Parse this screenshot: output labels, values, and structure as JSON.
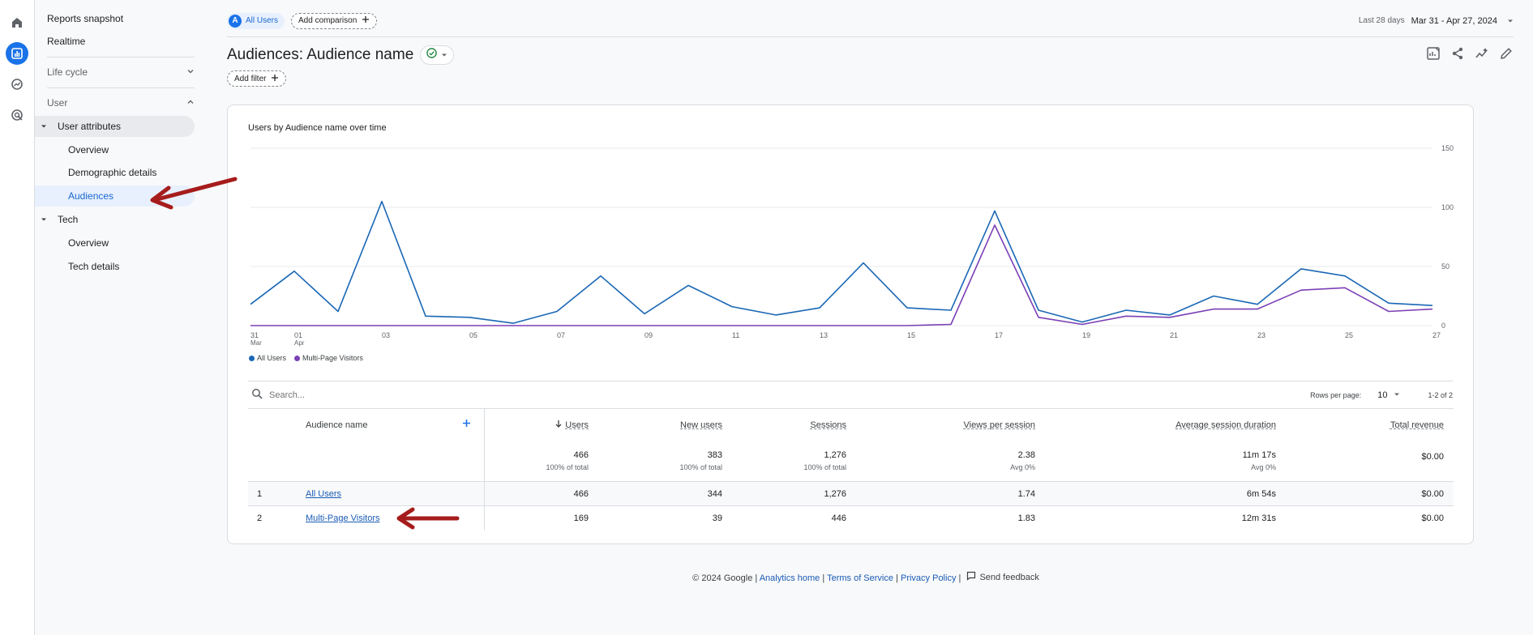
{
  "colors": {
    "accent": "#1a73e8",
    "series_all": "#1a67b5",
    "series_multi": "#7b3fb5",
    "arrow": "#a61c1c"
  },
  "rail": {
    "icons": [
      "home-icon",
      "reports-icon",
      "explore-icon",
      "advertising-icon"
    ]
  },
  "nav": {
    "reports_snapshot": "Reports snapshot",
    "realtime": "Realtime",
    "life_cycle": "Life cycle",
    "user": "User",
    "user_attributes": "User attributes",
    "overview": "Overview",
    "demographic_details": "Demographic details",
    "audiences": "Audiences",
    "tech": "Tech",
    "tech_overview": "Overview",
    "tech_details": "Tech details"
  },
  "topbar": {
    "segment_badge": "A",
    "segment_label": "All Users",
    "add_comparison": "Add comparison",
    "date_prefix": "Last 28 days",
    "date_range": "Mar 31 - Apr 27, 2024"
  },
  "page": {
    "title": "Audiences: Audience name",
    "add_filter": "Add filter"
  },
  "chart": {
    "title": "Users by Audience name over time",
    "y_ticks": [
      "150",
      "100",
      "50",
      "0"
    ],
    "x_ticks": [
      {
        "label": "31",
        "sub": "Mar"
      },
      {
        "label": "01",
        "sub": "Apr"
      },
      {
        "label": "03",
        "sub": ""
      },
      {
        "label": "05",
        "sub": ""
      },
      {
        "label": "07",
        "sub": ""
      },
      {
        "label": "09",
        "sub": ""
      },
      {
        "label": "11",
        "sub": ""
      },
      {
        "label": "13",
        "sub": ""
      },
      {
        "label": "15",
        "sub": ""
      },
      {
        "label": "17",
        "sub": ""
      },
      {
        "label": "19",
        "sub": ""
      },
      {
        "label": "21",
        "sub": ""
      },
      {
        "label": "23",
        "sub": ""
      },
      {
        "label": "25",
        "sub": ""
      },
      {
        "label": "27",
        "sub": ""
      }
    ],
    "legend": [
      "All Users",
      "Multi-Page Visitors"
    ]
  },
  "chart_data": {
    "type": "line",
    "x": [
      "Mar 31",
      "Apr 01",
      "Apr 02",
      "Apr 03",
      "Apr 04",
      "Apr 05",
      "Apr 06",
      "Apr 07",
      "Apr 08",
      "Apr 09",
      "Apr 10",
      "Apr 11",
      "Apr 12",
      "Apr 13",
      "Apr 14",
      "Apr 15",
      "Apr 16",
      "Apr 17",
      "Apr 18",
      "Apr 19",
      "Apr 20",
      "Apr 21",
      "Apr 22",
      "Apr 23",
      "Apr 24",
      "Apr 25",
      "Apr 26",
      "Apr 27"
    ],
    "series": [
      {
        "name": "All Users",
        "values": [
          18,
          46,
          12,
          105,
          8,
          7,
          2,
          12,
          42,
          10,
          34,
          16,
          9,
          15,
          53,
          15,
          13,
          97,
          13,
          3,
          13,
          9,
          25,
          18,
          48,
          42,
          19,
          17
        ]
      },
      {
        "name": "Multi-Page Visitors",
        "values": [
          0,
          0,
          0,
          0,
          0,
          0,
          0,
          0,
          0,
          0,
          0,
          0,
          0,
          0,
          0,
          0,
          1,
          85,
          7,
          1,
          8,
          7,
          14,
          14,
          30,
          32,
          12,
          14
        ]
      }
    ],
    "ylim": [
      0,
      150
    ],
    "y_axis_side": "right",
    "grid": true,
    "legend_placement": "bottom-left"
  },
  "table": {
    "search_placeholder": "Search...",
    "rows_per_page_label": "Rows per page:",
    "rows_per_page": "10",
    "pagination": "1-2 of 2",
    "dimension_header": "Audience name",
    "columns": [
      "Users",
      "New users",
      "Sessions",
      "Views per session",
      "Average session duration",
      "Total revenue"
    ],
    "totals": [
      "466",
      "383",
      "1,276",
      "2.38",
      "11m 17s",
      "$0.00"
    ],
    "totals_sub": [
      "100% of total",
      "100% of total",
      "100% of total",
      "Avg 0%",
      "Avg 0%",
      ""
    ],
    "rows": [
      {
        "index": "1",
        "name": "All Users",
        "values": [
          "466",
          "344",
          "1,276",
          "1.74",
          "6m 54s",
          "$0.00"
        ]
      },
      {
        "index": "2",
        "name": "Multi-Page Visitors",
        "values": [
          "169",
          "39",
          "446",
          "1.83",
          "12m 31s",
          "$0.00"
        ]
      }
    ]
  },
  "footer": {
    "copyright": "© 2024 Google |",
    "analytics_home": "Analytics home",
    "sep1": "|",
    "terms": "Terms of Service",
    "sep2": "|",
    "privacy": "Privacy Policy",
    "sep3": "|",
    "feedback": "Send feedback"
  }
}
